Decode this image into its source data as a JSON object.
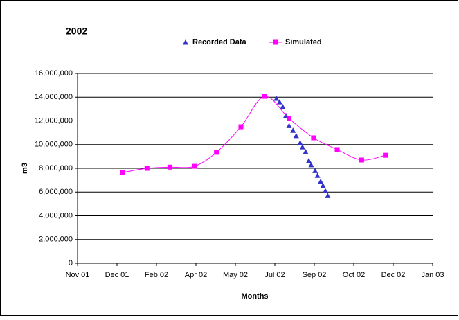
{
  "chart_data": {
    "type": "scatter",
    "title": "2002",
    "x_label": "Months",
    "y_label": "m3",
    "xlim": [
      0,
      450
    ],
    "xticks": [
      {
        "value": 0,
        "label": "Nov 01"
      },
      {
        "value": 50,
        "label": "Dec 01"
      },
      {
        "value": 100,
        "label": "Feb 02"
      },
      {
        "value": 150,
        "label": "Apr 02"
      },
      {
        "value": 200,
        "label": "May 02"
      },
      {
        "value": 250,
        "label": "Jul 02"
      },
      {
        "value": 300,
        "label": "Sep 02"
      },
      {
        "value": 350,
        "label": "Oct 02"
      },
      {
        "value": 400,
        "label": "Dec 02"
      },
      {
        "value": 450,
        "label": "Jan 03"
      }
    ],
    "ylim": [
      0,
      16000000
    ],
    "yticks": [
      0,
      {
        "value": 2000000,
        "label": "2,000,000"
      },
      {
        "value": 4000000,
        "label": "4,000,000"
      },
      {
        "value": 6000000,
        "label": "6,000,000"
      },
      {
        "value": 8000000,
        "label": "8,000,000"
      },
      {
        "value": 10000000,
        "label": "10,000,000"
      },
      {
        "value": 12000000,
        "label": "12,000,000"
      },
      {
        "value": 14000000,
        "label": "14,000,000"
      },
      {
        "value": 16000000,
        "label": "16,000,000"
      }
    ],
    "grid": true,
    "series": [
      {
        "name": "Recorded Data",
        "color": "#3333cc",
        "marker": "triangle",
        "line": false,
        "x": [
          252,
          256,
          260,
          264,
          268,
          273,
          277,
          282,
          285,
          289,
          293,
          296,
          301,
          304,
          308,
          311,
          314,
          317
        ],
        "values": [
          13900000,
          13600000,
          13200000,
          12450000,
          11600000,
          11200000,
          10750000,
          10150000,
          9800000,
          9400000,
          8650000,
          8300000,
          7800000,
          7400000,
          6900000,
          6550000,
          6100000,
          5700000
        ]
      },
      {
        "name": "Simulated",
        "color": "#ff00ff",
        "marker": "square",
        "line": true,
        "x": [
          57,
          88,
          117,
          148,
          176,
          207,
          237,
          268,
          299,
          329,
          360,
          390
        ],
        "values": [
          7650000,
          8000000,
          8100000,
          8170000,
          9350000,
          11500000,
          14070000,
          12200000,
          10570000,
          9580000,
          8700000,
          9100000
        ]
      }
    ]
  }
}
